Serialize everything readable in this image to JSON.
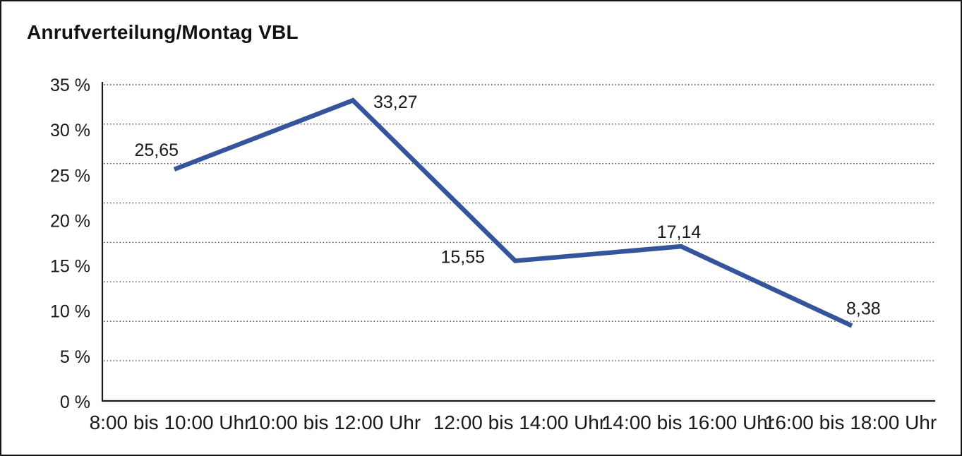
{
  "chart_data": {
    "type": "line",
    "title": "Anrufverteilung/Montag VBL",
    "categories": [
      "8:00 bis 10:00 Uhr",
      "10:00 bis 12:00 Uhr",
      "12:00 bis 14:00 Uhr",
      "14:00 bis 16:00 Uhr",
      "16:00 bis 18:00 Uhr"
    ],
    "values": [
      25.65,
      33.27,
      15.55,
      17.14,
      8.38
    ],
    "point_labels": [
      "25,65",
      "33,27",
      "15,55",
      "17,14",
      "8,38"
    ],
    "y_ticks": [
      "35 %",
      "30 %",
      "25 %",
      "20 %",
      "15 %",
      "10 %",
      "5 %",
      "0 %"
    ],
    "ylim": [
      0,
      35
    ],
    "xlabel": "",
    "ylabel": "",
    "grid": "horizontal-dotted",
    "legend_position": "none",
    "line_color": "#34549C",
    "grid_color": "#4d4d4d",
    "axis_color": "#1a1a1a",
    "text_color": "#1a1a1a"
  }
}
